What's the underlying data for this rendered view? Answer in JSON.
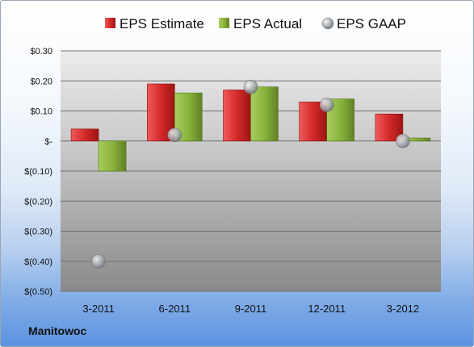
{
  "company": "Manitowoc",
  "colors": {
    "estimate": "#d42a2a",
    "actual": "#8ab33c",
    "gaap": "#a9adb3"
  },
  "chart_data": {
    "type": "bar",
    "categories": [
      "3-2011",
      "6-2011",
      "9-2011",
      "12-2011",
      "3-2012"
    ],
    "series": [
      {
        "name": "EPS Estimate",
        "kind": "bar",
        "values": [
          0.04,
          0.19,
          0.17,
          0.13,
          0.09
        ]
      },
      {
        "name": "EPS Actual",
        "kind": "bar",
        "values": [
          -0.1,
          0.16,
          0.18,
          0.14,
          0.01
        ]
      },
      {
        "name": "EPS GAAP",
        "kind": "scatter",
        "values": [
          -0.4,
          0.02,
          0.18,
          0.12,
          0.0
        ]
      }
    ],
    "y_ticks": [
      {
        "value": 0.3,
        "label": "$0.30"
      },
      {
        "value": 0.2,
        "label": "$0.20"
      },
      {
        "value": 0.1,
        "label": "$0.10"
      },
      {
        "value": 0.0,
        "label": "$-"
      },
      {
        "value": -0.1,
        "label": "$(0.10)"
      },
      {
        "value": -0.2,
        "label": "$(0.20)"
      },
      {
        "value": -0.3,
        "label": "$(0.30)"
      },
      {
        "value": -0.4,
        "label": "$(0.40)"
      },
      {
        "value": -0.5,
        "label": "$(0.50)"
      }
    ],
    "ylim": [
      -0.5,
      0.3
    ],
    "grid": true,
    "legend": "top"
  }
}
